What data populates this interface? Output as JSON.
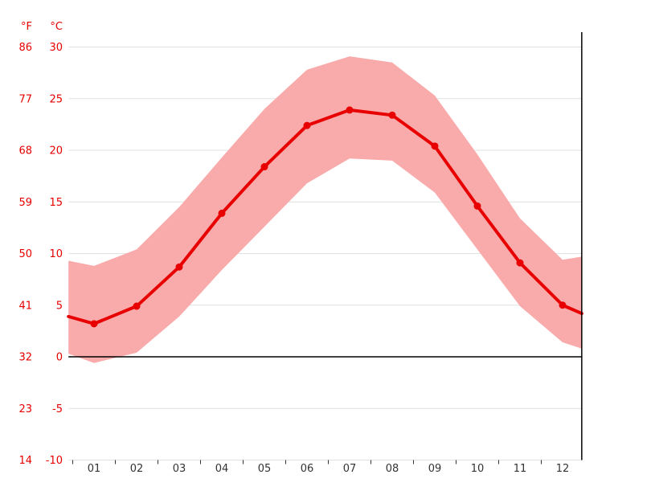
{
  "chart_data": {
    "type": "line",
    "title": "",
    "xlabel": "",
    "ylabel_left": "°F",
    "ylabel_right": "°C",
    "legend_position": "none",
    "grid": true,
    "categories": [
      "01",
      "02",
      "03",
      "04",
      "05",
      "06",
      "07",
      "08",
      "09",
      "10",
      "11",
      "12"
    ],
    "series": [
      {
        "name": "mean-temperature",
        "unit": "°C",
        "values": [
          3.2,
          4.9,
          8.7,
          13.9,
          18.4,
          22.4,
          23.9,
          23.4,
          20.4,
          14.6,
          9.1,
          5.0
        ]
      },
      {
        "name": "max-temperature",
        "unit": "°C",
        "values": [
          8.8,
          10.4,
          14.5,
          19.3,
          24.0,
          27.8,
          29.1,
          28.5,
          25.3,
          19.6,
          13.4,
          9.4
        ]
      },
      {
        "name": "min-temperature",
        "unit": "°C",
        "values": [
          -0.6,
          0.4,
          3.9,
          8.4,
          12.6,
          16.8,
          19.2,
          19.0,
          15.9,
          10.4,
          4.9,
          1.4
        ]
      }
    ],
    "edge_values": {
      "mean": [
        3.9,
        4.2
      ],
      "max": [
        9.3,
        9.7
      ],
      "min": [
        0.3,
        0.8
      ]
    },
    "y_ticks": [
      {
        "f": "86",
        "c": "30",
        "value": 30
      },
      {
        "f": "77",
        "c": "25",
        "value": 25
      },
      {
        "f": "68",
        "c": "20",
        "value": 20
      },
      {
        "f": "59",
        "c": "15",
        "value": 15
      },
      {
        "f": "50",
        "c": "10",
        "value": 10
      },
      {
        "f": "41",
        "c": "5",
        "value": 5
      },
      {
        "f": "32",
        "c": "0",
        "value": 0
      },
      {
        "f": "23",
        "c": "-5",
        "value": -5
      },
      {
        "f": "14",
        "c": "-10",
        "value": -10
      }
    ],
    "axis": {
      "x_start": 0.4,
      "x_end": 12.45,
      "y_min": -10,
      "y_max": 31.4,
      "zero_line": 0
    },
    "colors": {
      "line": "#e80000",
      "band": "#f9aaaa",
      "grid": "#e0e0e0",
      "zero_line": "#000000",
      "axis_line": "#000000",
      "label": "#e60000",
      "month_label": "#333333",
      "background": "#ffffff"
    }
  }
}
